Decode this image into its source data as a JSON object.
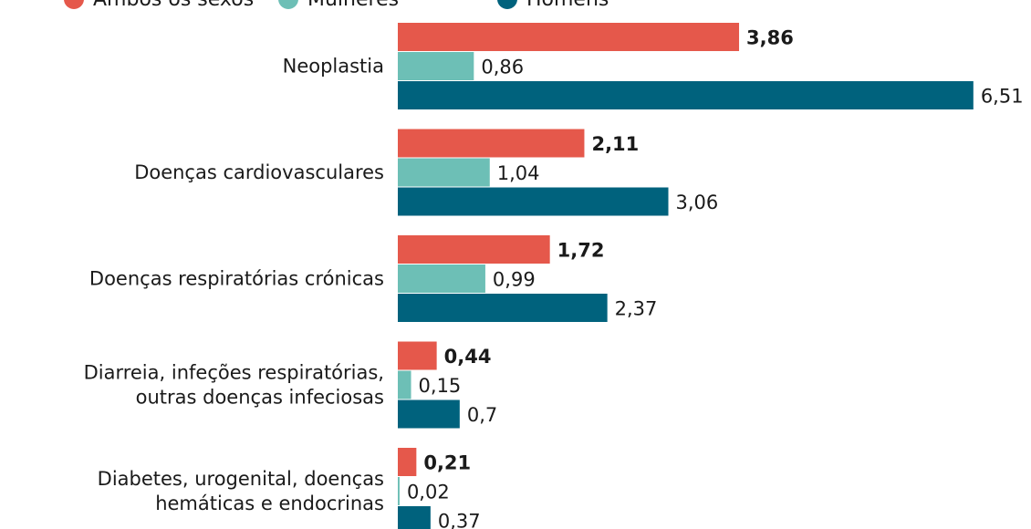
{
  "chart_data": {
    "type": "bar",
    "orientation": "horizontal",
    "categories": [
      [
        "Neoplastia"
      ],
      [
        "Doenças cardiovasculares"
      ],
      [
        "Doenças respiratórias crónicas"
      ],
      [
        "Diarreia, infeções respiratórias,",
        "outras doenças infeciosas"
      ],
      [
        "Diabetes, urogenital, doenças",
        "hemáticas e endocrinas"
      ]
    ],
    "series": [
      {
        "name": "Ambos os sexos",
        "values": [
          3.86,
          2.11,
          1.72,
          0.44,
          0.21
        ],
        "labels": [
          "3,86",
          "2,11",
          "1,72",
          "0,44",
          "0,21"
        ],
        "color": "#e5584b",
        "bold_labels": true
      },
      {
        "name": "Mulheres",
        "values": [
          0.86,
          1.04,
          0.99,
          0.15,
          0.02
        ],
        "labels": [
          "0,86",
          "1,04",
          "0,99",
          "0,15",
          "0,02"
        ],
        "color": "#6dbfb6",
        "bold_labels": false
      },
      {
        "name": "Homens",
        "values": [
          6.51,
          3.06,
          2.37,
          0.7,
          0.37
        ],
        "labels": [
          "6,51",
          "3,06",
          "2,37",
          "0,7",
          "0,37"
        ],
        "color": "#00627d",
        "bold_labels": false
      }
    ],
    "legend": {
      "placement": "top"
    },
    "grid": false
  }
}
